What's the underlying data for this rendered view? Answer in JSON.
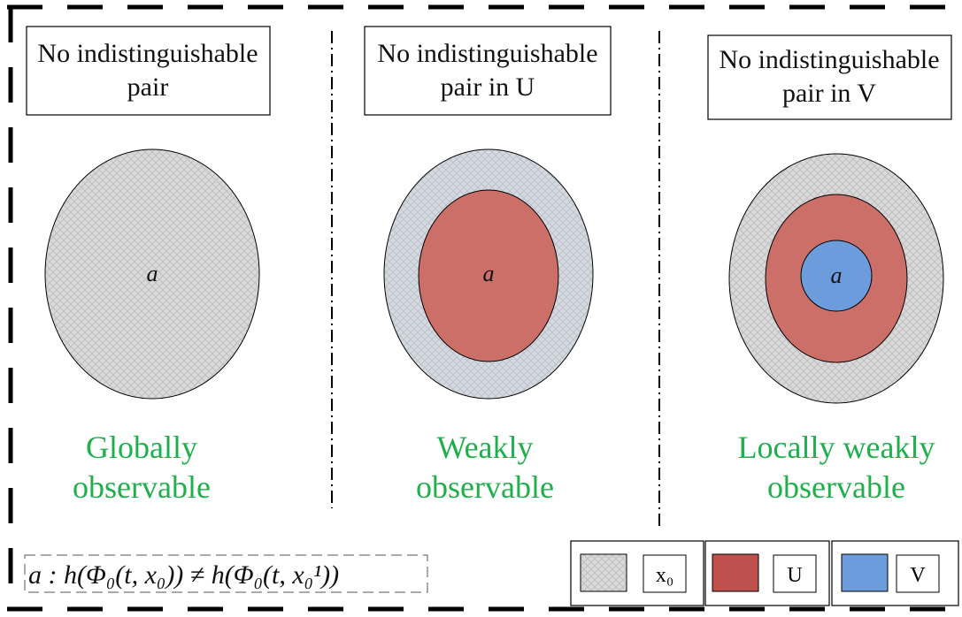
{
  "panels": [
    {
      "box_lines": [
        "No indistinguishable",
        "pair"
      ],
      "center": "a",
      "caption_lines": [
        "Globally",
        "observable"
      ]
    },
    {
      "box_lines": [
        "No indistinguishable",
        "pair in U"
      ],
      "center": "a",
      "caption_lines": [
        "Weakly",
        "observable"
      ]
    },
    {
      "box_lines": [
        "No indistinguishable",
        "pair in V"
      ],
      "center": "a",
      "caption_lines": [
        "Locally weakly",
        "observable"
      ]
    }
  ],
  "formula": "a : h(Φ₀(t, x₀)) ≠ h(Φ₀(t, x₀¹))",
  "legend": [
    "x₀",
    "U",
    "V"
  ]
}
